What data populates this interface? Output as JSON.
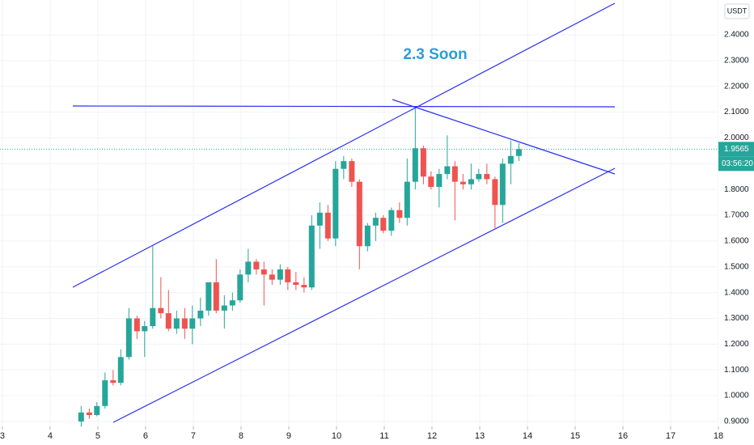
{
  "chart_data": {
    "type": "candlestick",
    "annotation": "2.3 Soon",
    "currency": "USDT",
    "countdown": "03:56:20",
    "x": [
      4.65,
      4.82,
      4.98,
      5.15,
      5.32,
      5.48,
      5.65,
      5.82,
      5.98,
      6.15,
      6.32,
      6.48,
      6.65,
      6.82,
      6.98,
      7.15,
      7.32,
      7.48,
      7.65,
      7.82,
      7.98,
      8.15,
      8.32,
      8.48,
      8.65,
      8.82,
      8.98,
      9.15,
      9.32,
      9.48,
      9.65,
      9.82,
      9.98,
      10.15,
      10.32,
      10.48,
      10.65,
      10.82,
      10.98,
      11.15,
      11.32,
      11.48,
      11.65,
      11.82,
      11.98,
      12.15,
      12.32,
      12.48,
      12.65,
      12.82,
      12.98,
      13.15,
      13.32,
      13.48,
      13.65,
      13.82
    ],
    "open": [
      0.9,
      0.935,
      0.925,
      0.96,
      1.06,
      1.05,
      1.15,
      1.3,
      1.25,
      1.27,
      1.34,
      1.32,
      1.26,
      1.3,
      1.26,
      1.3,
      1.33,
      1.44,
      1.33,
      1.35,
      1.37,
      1.47,
      1.52,
      1.49,
      1.47,
      1.45,
      1.49,
      1.44,
      1.43,
      1.42,
      1.66,
      1.71,
      1.61,
      1.88,
      1.91,
      1.83,
      1.58,
      1.66,
      1.69,
      1.64,
      1.72,
      1.69,
      1.83,
      1.96,
      1.85,
      1.81,
      1.86,
      1.89,
      1.83,
      1.82,
      1.84,
      1.86,
      1.84,
      1.74,
      1.9,
      1.93
    ],
    "high": [
      0.96,
      0.95,
      0.975,
      1.09,
      1.1,
      1.18,
      1.34,
      1.31,
      1.29,
      1.58,
      1.46,
      1.41,
      1.33,
      1.34,
      1.35,
      1.38,
      1.44,
      1.53,
      1.39,
      1.4,
      1.49,
      1.57,
      1.53,
      1.52,
      1.49,
      1.51,
      1.5,
      1.48,
      1.46,
      1.7,
      1.75,
      1.74,
      1.91,
      1.93,
      1.92,
      1.84,
      1.67,
      1.71,
      1.7,
      1.73,
      1.75,
      1.92,
      2.12,
      1.97,
      1.87,
      1.88,
      2.01,
      1.91,
      1.86,
      1.9,
      1.88,
      1.9,
      1.85,
      1.92,
      1.99,
      1.98
    ],
    "low": [
      0.88,
      0.91,
      0.92,
      0.95,
      1.04,
      1.04,
      1.14,
      1.22,
      1.15,
      1.26,
      1.3,
      1.25,
      1.24,
      1.22,
      1.2,
      1.27,
      1.31,
      1.32,
      1.26,
      1.33,
      1.36,
      1.44,
      1.47,
      1.35,
      1.43,
      1.43,
      1.41,
      1.41,
      1.4,
      1.41,
      1.57,
      1.6,
      1.58,
      1.84,
      1.81,
      1.49,
      1.56,
      1.6,
      1.63,
      1.62,
      1.67,
      1.66,
      1.8,
      1.82,
      1.8,
      1.73,
      1.84,
      1.68,
      1.8,
      1.8,
      1.83,
      1.82,
      1.65,
      1.67,
      1.82,
      1.91
    ],
    "close": [
      0.935,
      0.925,
      0.96,
      1.06,
      1.05,
      1.15,
      1.3,
      1.25,
      1.27,
      1.34,
      1.32,
      1.26,
      1.3,
      1.26,
      1.3,
      1.33,
      1.44,
      1.33,
      1.35,
      1.37,
      1.47,
      1.52,
      1.49,
      1.47,
      1.45,
      1.49,
      1.44,
      1.43,
      1.42,
      1.66,
      1.71,
      1.61,
      1.88,
      1.91,
      1.83,
      1.58,
      1.66,
      1.69,
      1.64,
      1.72,
      1.69,
      1.83,
      1.96,
      1.85,
      1.81,
      1.86,
      1.89,
      1.83,
      1.82,
      1.84,
      1.86,
      1.84,
      1.74,
      1.9,
      1.93,
      1.9565
    ],
    "up_color": "#26a69a",
    "down_color": "#ef5350",
    "xlim": [
      2.95,
      18.0
    ],
    "ylim": [
      0.881,
      2.535
    ],
    "xticks": [
      3,
      4,
      5,
      6,
      7,
      8,
      9,
      10,
      11,
      12,
      13,
      14,
      15,
      16,
      17,
      18
    ],
    "yticks": [
      {
        "value": 0.9,
        "label": "0.9000"
      },
      {
        "value": 1.0,
        "label": "1.0000"
      },
      {
        "value": 1.1,
        "label": "1.1000"
      },
      {
        "value": 1.2,
        "label": "1.2000"
      },
      {
        "value": 1.3,
        "label": "1.3000"
      },
      {
        "value": 1.4,
        "label": "1.4000"
      },
      {
        "value": 1.5,
        "label": "1.5000"
      },
      {
        "value": 1.6,
        "label": "1.6000"
      },
      {
        "value": 1.7,
        "label": "1.7000"
      },
      {
        "value": 1.8,
        "label": "1.8000"
      },
      {
        "value": 1.9,
        "label": "1.9000"
      },
      {
        "value": 2.0,
        "label": "2.0000"
      },
      {
        "value": 2.1,
        "label": "2.1000"
      },
      {
        "value": 2.2,
        "label": "2.2000"
      },
      {
        "value": 2.3,
        "label": "2.3000"
      },
      {
        "value": 2.4,
        "label": "2.4000"
      }
    ],
    "grid": true
  }
}
